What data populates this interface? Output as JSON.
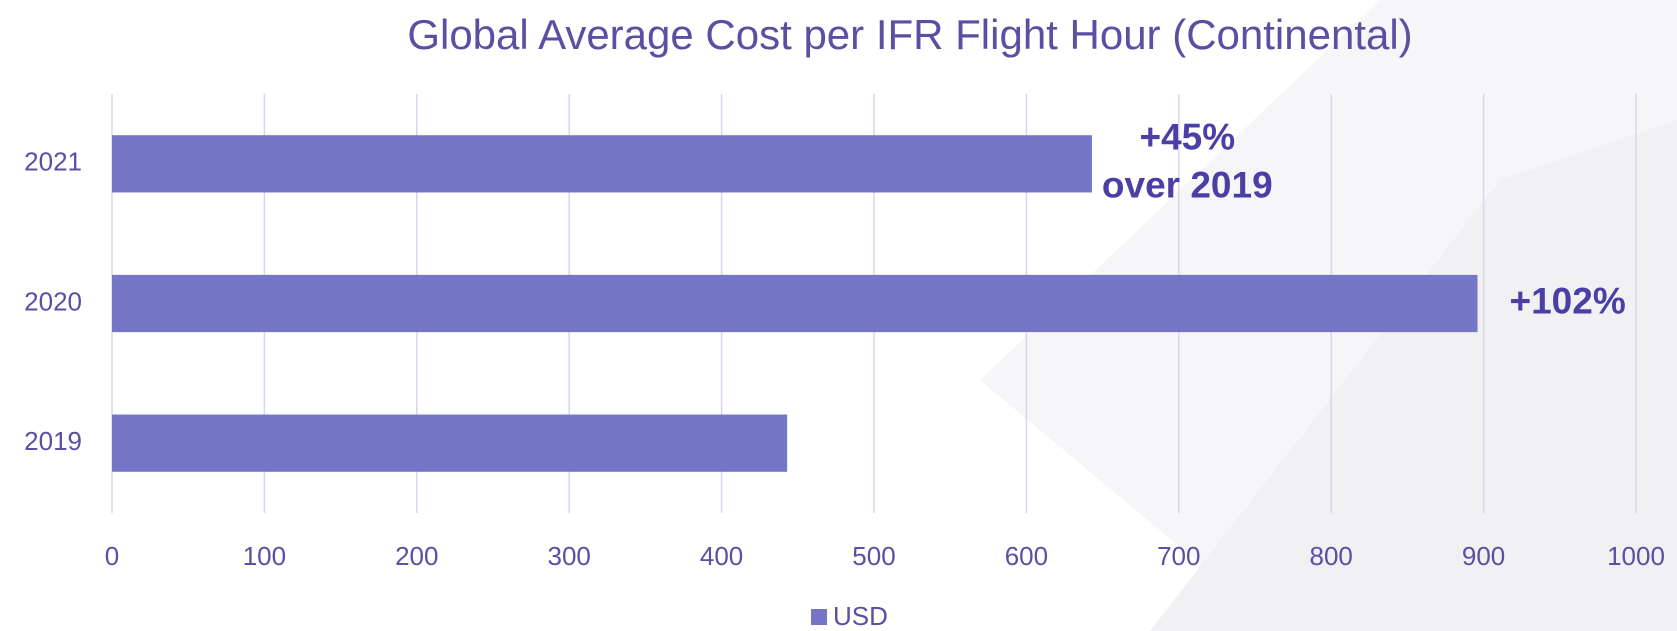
{
  "chart_data": {
    "type": "hbar",
    "title": "Global Average Cost per IFR Flight Hour (Continental)",
    "categories": [
      "2021",
      "2020",
      "2019"
    ],
    "series": [
      {
        "name": "USD",
        "color": "#7676c9",
        "values": [
          643,
          896,
          443
        ]
      }
    ],
    "xlim": [
      0,
      1000
    ],
    "xticks": [
      0,
      100,
      200,
      300,
      400,
      500,
      600,
      700,
      800,
      900,
      1000
    ],
    "grid": true,
    "legend": "bottom",
    "annotations": [
      {
        "category": 0,
        "lines": [
          "+45%",
          "over 2019"
        ]
      },
      {
        "category": 1,
        "lines": [
          "+102%"
        ]
      }
    ]
  }
}
